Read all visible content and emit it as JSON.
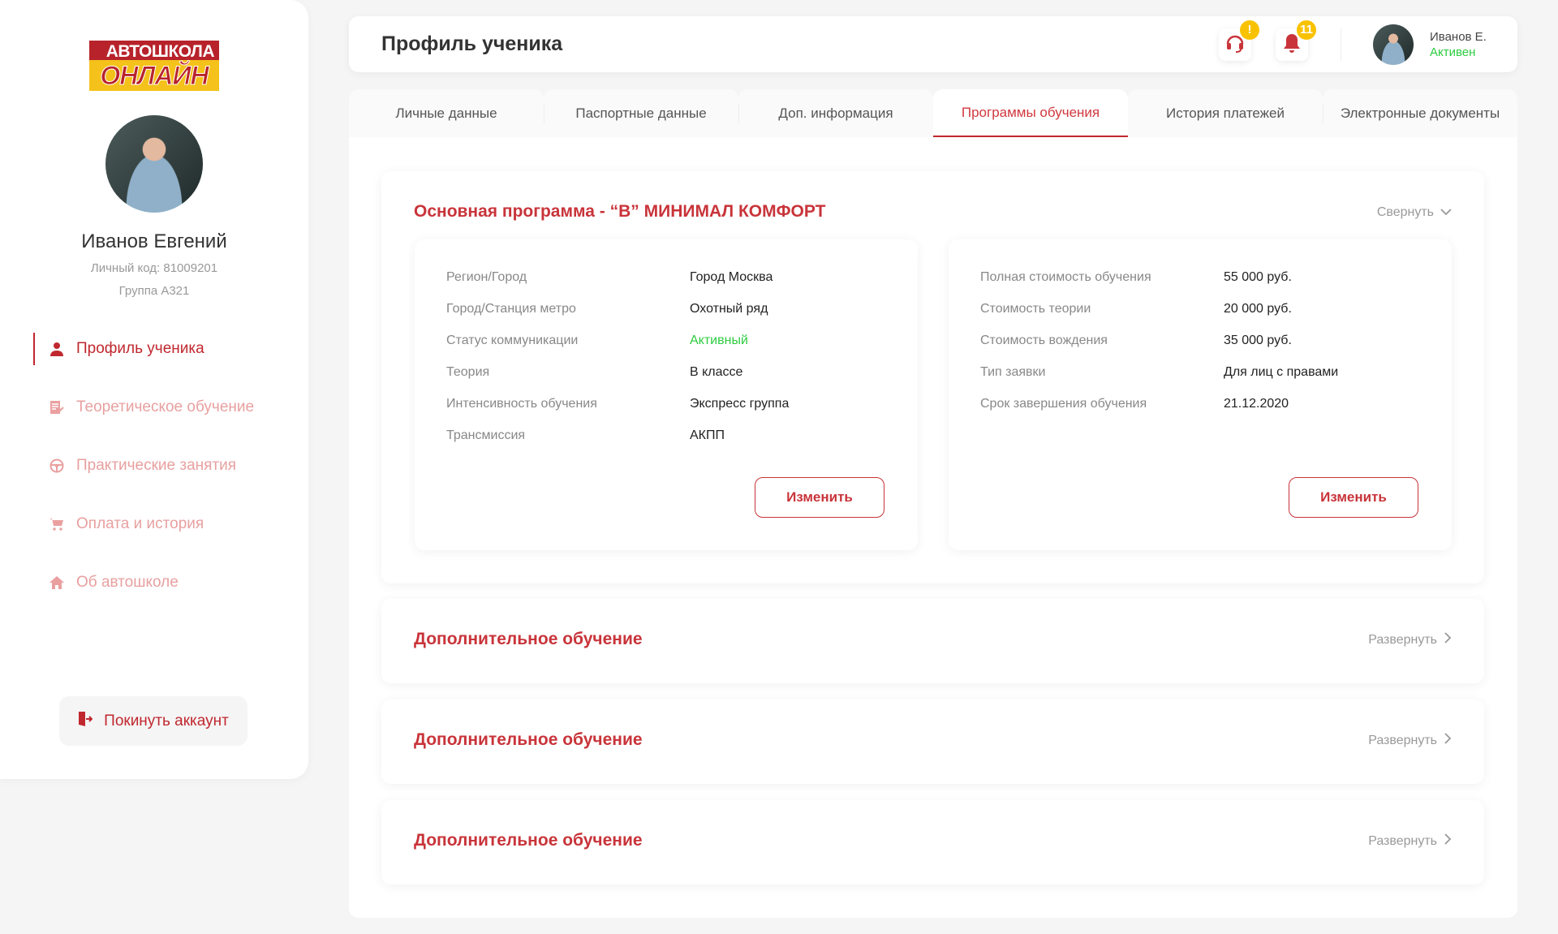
{
  "logo": {
    "line1": "АВТОШКОЛА",
    "line2": "ОНЛАЙН"
  },
  "sidebar": {
    "name": "Иванов Евгений",
    "code": "Личный код: 81009201",
    "group": "Группа А321",
    "items": [
      {
        "label": "Профиль ученика",
        "icon": "user-icon",
        "active": true
      },
      {
        "label": "Теоретическое обучение",
        "icon": "document-edit-icon"
      },
      {
        "label": "Практические занятия",
        "icon": "steering-wheel-icon"
      },
      {
        "label": "Оплата и история",
        "icon": "cart-icon"
      },
      {
        "label": "Об автошколе",
        "icon": "home-icon"
      }
    ],
    "logout": "Покинуть аккаунт"
  },
  "header": {
    "title": "Профиль ученика",
    "support_badge": "!",
    "notif_badge": "11",
    "user_name": "Иванов Е.",
    "user_status": "Активен"
  },
  "tabs": [
    "Личные данные",
    "Паспортные данные",
    "Доп. информация",
    "Программы обучения",
    "История платежей",
    "Электронные документы"
  ],
  "main_program": {
    "title": "Основная программа - “B” МИНИМАЛ КОМФОРТ",
    "toggle": "Свернуть",
    "left": [
      [
        "Регион/Город",
        "Город Москва"
      ],
      [
        "Город/Станция метро",
        "Охотный ряд"
      ],
      [
        "Статус коммуникации",
        "Активный"
      ],
      [
        "Теория",
        "В классе"
      ],
      [
        "Интенсивность обучения",
        "Экспресс группа"
      ],
      [
        "Трансмиссия",
        "АКПП"
      ]
    ],
    "right": [
      [
        "Полная стоимость обучения",
        "55 000 руб."
      ],
      [
        "Стоимость теории",
        "20 000 руб."
      ],
      [
        "Стоимость вождения",
        "35 000 руб."
      ],
      [
        "Тип заявки",
        "Для лиц с правами"
      ],
      [
        "Срок завершения обучения",
        "21.12.2020"
      ]
    ],
    "edit": "Изменить"
  },
  "extra": [
    {
      "title": "Дополнительное обучение",
      "toggle": "Развернуть"
    },
    {
      "title": "Дополнительное обучение",
      "toggle": "Развернуть"
    },
    {
      "title": "Дополнительное обучение",
      "toggle": "Развернуть"
    }
  ],
  "colors": {
    "accent": "#c8343a",
    "active_green": "#2ecc40",
    "badge": "#f9c200"
  }
}
